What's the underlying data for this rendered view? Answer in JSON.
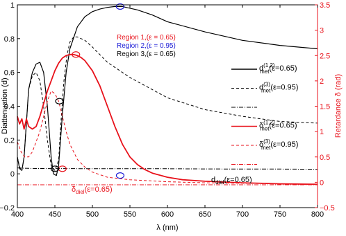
{
  "chart_data": {
    "type": "line",
    "xlabel": "λ (nm)",
    "ylabel_left": "Diattenuation (d)",
    "ylabel_right": "Retardance δ (rad)",
    "xlim": [
      400,
      800
    ],
    "ylim_left": [
      -0.2,
      1.0
    ],
    "ylim_right": [
      -0.5,
      3.5
    ],
    "x_ticks": [
      400,
      450,
      500,
      550,
      600,
      650,
      700,
      750,
      800
    ],
    "y_ticks_left": [
      -0.2,
      0,
      0.2,
      0.4,
      0.6,
      0.8,
      1
    ],
    "y_ticks_right": [
      -0.5,
      0,
      0.5,
      1,
      1.5,
      2,
      2.5,
      3,
      3.5
    ],
    "x_tick_labels": [
      "400",
      "450",
      "500",
      "550",
      "600",
      "650",
      "700",
      "750",
      "800"
    ],
    "y_tick_labels_left": [
      "−0.2",
      "0",
      "0.2",
      "0.4",
      "0.6",
      "0.8",
      "1"
    ],
    "y_tick_labels_right": [
      "−0.5",
      "0",
      "0.5",
      "1",
      "1.5",
      "2",
      "2.5",
      "3",
      "3.5"
    ],
    "colors": {
      "left_axis": "#000000",
      "right_axis": "#e8121b",
      "blue": "#1a1ad6"
    },
    "series": [
      {
        "name": "d_met^(1,2)(ε=0.65)",
        "axis": "left",
        "color": "#000000",
        "style": "solid",
        "width": 1.2,
        "x": [
          400,
          403,
          406,
          409,
          412,
          415,
          420,
          425,
          430,
          435,
          440,
          445,
          448,
          452,
          455,
          460,
          465,
          470,
          480,
          490,
          500,
          510,
          520,
          530,
          540,
          550,
          560,
          580,
          600,
          650,
          700,
          750,
          800
        ],
        "y": [
          0.1,
          0.03,
          0.02,
          0.1,
          0.3,
          0.5,
          0.6,
          0.65,
          0.66,
          0.6,
          0.4,
          0.1,
          0.0,
          -0.01,
          0.05,
          0.35,
          0.6,
          0.74,
          0.87,
          0.93,
          0.96,
          0.975,
          0.985,
          0.99,
          0.99,
          0.98,
          0.97,
          0.94,
          0.9,
          0.84,
          0.79,
          0.76,
          0.74
        ]
      },
      {
        "name": "d_met^(3)(ε=0.95)",
        "axis": "left",
        "color": "#000000",
        "style": "dashed",
        "width": 1.0,
        "x": [
          400,
          403,
          406,
          409,
          412,
          415,
          420,
          425,
          430,
          435,
          440,
          445,
          450,
          455,
          458,
          462,
          466,
          470,
          475,
          480,
          490,
          500,
          520,
          550,
          600,
          650,
          700,
          750,
          800
        ],
        "y": [
          0.1,
          0.04,
          0.02,
          0.1,
          0.3,
          0.5,
          0.58,
          0.6,
          0.55,
          0.4,
          0.2,
          0.05,
          0.02,
          0.08,
          0.3,
          0.55,
          0.7,
          0.78,
          0.81,
          0.81,
          0.79,
          0.75,
          0.66,
          0.57,
          0.45,
          0.38,
          0.34,
          0.31,
          0.3
        ]
      },
      {
        "name": "d_diel(ε=0.65)",
        "axis": "left",
        "color": "#000000",
        "style": "dashdot",
        "width": 1.0,
        "x": [
          400,
          410,
          420,
          440,
          460,
          500,
          550,
          600,
          650,
          700,
          750,
          800
        ],
        "y": [
          0.035,
          0.033,
          0.032,
          0.031,
          0.031,
          0.03,
          0.03,
          0.03,
          0.029,
          0.028,
          0.028,
          0.027
        ]
      },
      {
        "name": "δ_met^(1,2)(ε=0.65)",
        "axis": "right",
        "color": "#e8121b",
        "style": "solid",
        "width": 1.8,
        "x": [
          400,
          403,
          406,
          409,
          412,
          415,
          420,
          425,
          430,
          435,
          440,
          445,
          450,
          455,
          460,
          465,
          470,
          475,
          480,
          485,
          490,
          495,
          500,
          510,
          520,
          530,
          540,
          550,
          560,
          570,
          580,
          600,
          620,
          650,
          700,
          750,
          800
        ],
        "y": [
          1.3,
          1.15,
          1.25,
          1.05,
          1.25,
          1.1,
          1.05,
          1.1,
          1.3,
          1.55,
          1.8,
          2.0,
          2.2,
          2.35,
          2.45,
          2.5,
          2.52,
          2.52,
          2.5,
          2.46,
          2.4,
          2.3,
          2.2,
          1.9,
          1.5,
          1.1,
          0.75,
          0.5,
          0.35,
          0.25,
          0.18,
          0.1,
          0.05,
          0.02,
          -0.01,
          -0.03,
          -0.04
        ]
      },
      {
        "name": "δ_met^(3)(ε=0.95)",
        "axis": "right",
        "color": "#e8121b",
        "style": "dashed",
        "width": 1.0,
        "x": [
          400,
          405,
          410,
          415,
          420,
          425,
          430,
          435,
          440,
          445,
          450,
          455,
          460,
          465,
          470,
          480,
          490,
          500,
          520,
          550,
          600,
          650,
          700,
          750,
          800
        ],
        "y": [
          0.8,
          0.6,
          0.5,
          0.5,
          0.6,
          0.8,
          1.0,
          1.3,
          1.6,
          1.8,
          1.75,
          1.6,
          1.3,
          1.0,
          0.75,
          0.45,
          0.3,
          0.2,
          0.1,
          0.05,
          0.01,
          -0.01,
          -0.02,
          -0.03,
          -0.04
        ]
      },
      {
        "name": "δ_diel(ε=0.65)",
        "axis": "right",
        "color": "#e8121b",
        "style": "dashdot",
        "width": 1.0,
        "x": [
          400,
          450,
          500,
          550,
          600,
          650,
          700,
          750,
          800
        ],
        "y": [
          -0.05,
          -0.05,
          -0.05,
          -0.05,
          -0.05,
          -0.05,
          -0.05,
          -0.05,
          -0.05
        ]
      }
    ],
    "markers": [
      {
        "name": "region-1-marker-top",
        "x": 478,
        "y": 2.52,
        "axis": "right",
        "color": "#e8121b"
      },
      {
        "name": "region-1-marker-bottom",
        "x": 460,
        "y": 0.03,
        "axis": "left",
        "color": "#e8121b"
      },
      {
        "name": "region-2-marker-top",
        "x": 537,
        "y": 0.99,
        "axis": "left",
        "color": "#1a1ad6"
      },
      {
        "name": "region-2-marker-bottom",
        "x": 537,
        "y": -0.01,
        "axis": "left",
        "color": "#1a1ad6"
      },
      {
        "name": "region-3-marker-top",
        "x": 456,
        "y": 0.43,
        "axis": "left",
        "color": "#000000"
      },
      {
        "name": "region-3-marker-bottom",
        "x": 450,
        "y": 0.03,
        "axis": "left",
        "color": "#000000"
      }
    ],
    "annotations": [
      {
        "text": "Region 1,(ε = 0.65)",
        "color": "#e8121b"
      },
      {
        "text": "Region 2,(ε = 0.95)",
        "color": "#1a1ad6"
      },
      {
        "text": "Region 3,(ε = 0.65)",
        "color": "#000000"
      }
    ],
    "inline_labels": {
      "d_diel": {
        "base": "d",
        "sub": "diel",
        "tail": "(ε=0.65)"
      },
      "delta_diel": {
        "base": "δ",
        "sub": "diel",
        "tail": "(ε=0.65)"
      }
    },
    "legend": {
      "placement": "right",
      "entries": [
        {
          "base": "d",
          "sup": "(1,2)",
          "sub": "met",
          "tail": "(ε=0.65)",
          "color": "#000000",
          "style": "solid"
        },
        {
          "base": "d",
          "sup": "(3)",
          "sub": "met",
          "tail": "(ε=0.95)",
          "color": "#000000",
          "style": "dashed"
        },
        {
          "base": "",
          "sup": "",
          "sub": "",
          "tail": "",
          "color": "#000000",
          "style": "dashdot"
        },
        {
          "base": "δ",
          "sup": "(1,2)",
          "sub": "met",
          "tail": "(ε=0.65)",
          "color": "#e8121b",
          "style": "solid"
        },
        {
          "base": "δ",
          "sup": "(3)",
          "sub": "met",
          "tail": "(ε=0.95)",
          "color": "#e8121b",
          "style": "dashed"
        },
        {
          "base": "",
          "sup": "",
          "sub": "",
          "tail": "",
          "color": "#e8121b",
          "style": "dashdot"
        }
      ]
    }
  }
}
